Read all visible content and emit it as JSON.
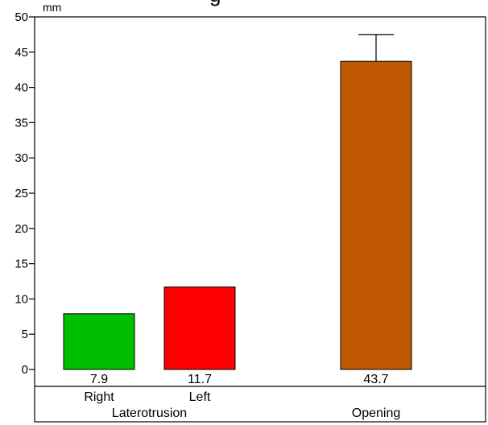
{
  "title_fragment": "g",
  "chart_data": {
    "type": "bar",
    "ylabel": "mm",
    "ylim": [
      0,
      50
    ],
    "yticks": [
      0,
      5,
      10,
      15,
      20,
      25,
      30,
      35,
      40,
      45,
      50
    ],
    "categories": [
      "Right",
      "Left",
      "Opening"
    ],
    "groups": [
      {
        "label": "Laterotrusion",
        "members": [
          "Right",
          "Left"
        ]
      },
      {
        "label": "Opening",
        "members": [
          "Opening"
        ]
      }
    ],
    "values": [
      7.9,
      11.7,
      43.7
    ],
    "value_labels": [
      "7.9",
      "11.7",
      "43.7"
    ],
    "error_bars": [
      0,
      0,
      3.8
    ],
    "colors": [
      "#00bf00",
      "#ff0000",
      "#bf5800"
    ],
    "grid": false,
    "legend": "none"
  }
}
